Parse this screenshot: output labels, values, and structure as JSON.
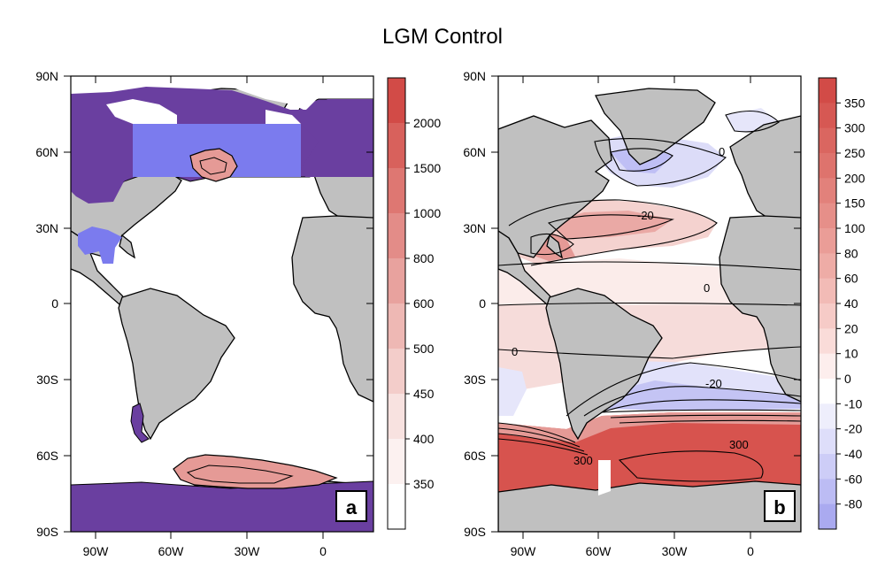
{
  "title": "LGM Control",
  "panel_a": {
    "label": "a",
    "lat_labels": [
      "90N",
      "60N",
      "30N",
      "0",
      "30S",
      "60S",
      "90S"
    ],
    "lon_labels": [
      "90W",
      "60W",
      "30W",
      "0"
    ],
    "colorbar_labels": [
      "2000",
      "1500",
      "1000",
      "800",
      "600",
      "500",
      "450",
      "400",
      "350"
    ]
  },
  "panel_b": {
    "label": "b",
    "lat_labels": [
      "90N",
      "60N",
      "30N",
      "0",
      "30S",
      "60S",
      "90S"
    ],
    "lon_labels": [
      "90W",
      "60W",
      "30W",
      "0"
    ],
    "colorbar_labels": [
      "350",
      "300",
      "250",
      "200",
      "150",
      "100",
      "80",
      "60",
      "40",
      "20",
      "10",
      "0",
      "-10",
      "-20",
      "-40",
      "-60",
      "-80"
    ],
    "contour_labels": [
      "-20",
      "0",
      "0",
      "0",
      "-20",
      "300",
      "300"
    ]
  },
  "colors": {
    "land": "#c0c0c0",
    "ice_purple": "#6a3fa0",
    "ice_blue": "#7b7bee",
    "red_strong": "#d7534e",
    "red_mid": "#e59a96",
    "red_light": "#f4d6d3",
    "blue_light": "#e3e3fb",
    "blue_mid": "#bfbff5"
  }
}
